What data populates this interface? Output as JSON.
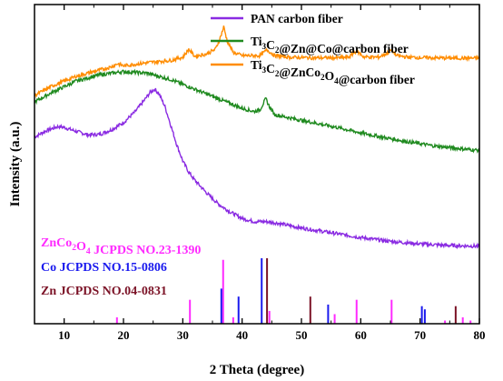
{
  "chart_data": {
    "type": "line",
    "title": "",
    "xlabel": "2 Theta (degree)",
    "ylabel": "Intensity (a.u.)",
    "xlim": [
      5,
      80
    ],
    "ylim": [
      0,
      100
    ],
    "y_ticks_shown": false,
    "x_ticks": [
      10,
      20,
      30,
      40,
      50,
      60,
      70,
      80
    ],
    "x_minor_step": 5,
    "grid": false,
    "legend_position": "top-right",
    "series": [
      {
        "name": "PAN carbon fiber",
        "color": "#8a2be2",
        "points": [
          [
            5,
            58.5
          ],
          [
            7,
            60.5
          ],
          [
            9,
            61.8
          ],
          [
            10,
            61.5
          ],
          [
            12,
            60.3
          ],
          [
            14,
            59.2
          ],
          [
            16,
            59.3
          ],
          [
            18,
            60.8
          ],
          [
            20,
            63
          ],
          [
            22,
            66.5
          ],
          [
            23.5,
            70
          ],
          [
            24.5,
            72.5
          ],
          [
            25.3,
            73.5
          ],
          [
            26,
            72
          ],
          [
            27,
            68
          ],
          [
            28,
            62
          ],
          [
            29,
            56
          ],
          [
            30,
            51
          ],
          [
            31,
            47.5
          ],
          [
            32,
            45
          ],
          [
            34,
            41
          ],
          [
            36,
            37.5
          ],
          [
            38,
            35
          ],
          [
            40,
            33
          ],
          [
            42,
            32
          ],
          [
            44,
            32
          ],
          [
            46,
            31.5
          ],
          [
            48,
            30.7
          ],
          [
            50,
            30
          ],
          [
            55,
            28.5
          ],
          [
            60,
            27
          ],
          [
            65,
            25.8
          ],
          [
            70,
            25
          ],
          [
            75,
            24.5
          ],
          [
            80,
            24.3
          ]
        ]
      },
      {
        "name": "Ti3C2@Zn@Co@carbon fiber",
        "color": "#1f8a1f",
        "points": [
          [
            5,
            69.5
          ],
          [
            8,
            72.5
          ],
          [
            12,
            76
          ],
          [
            16,
            78
          ],
          [
            20,
            79
          ],
          [
            24,
            78.5
          ],
          [
            28,
            76.5
          ],
          [
            32,
            73.5
          ],
          [
            36,
            70.5
          ],
          [
            40,
            67.5
          ],
          [
            42,
            66.5
          ],
          [
            43,
            67
          ],
          [
            44,
            70.5
          ],
          [
            44.6,
            68
          ],
          [
            45.5,
            65.5
          ],
          [
            48,
            64.5
          ],
          [
            52,
            63
          ],
          [
            56,
            61.5
          ],
          [
            60,
            59.8
          ],
          [
            64,
            58.3
          ],
          [
            68,
            57
          ],
          [
            72,
            55.8
          ],
          [
            76,
            55
          ],
          [
            80,
            54.3
          ]
        ]
      },
      {
        "name": "Ti3C2@ZnCo2O4@carbon fiber",
        "color": "#ff8c00",
        "points": [
          [
            5,
            71.5
          ],
          [
            8,
            74.5
          ],
          [
            12,
            77.5
          ],
          [
            16,
            79.5
          ],
          [
            18,
            80.5
          ],
          [
            19,
            81.5
          ],
          [
            20,
            80.8
          ],
          [
            24,
            81.8
          ],
          [
            28,
            82.5
          ],
          [
            30,
            83.5
          ],
          [
            31,
            86
          ],
          [
            32,
            83.8
          ],
          [
            34,
            84.5
          ],
          [
            35.5,
            86
          ],
          [
            36.2,
            89
          ],
          [
            36.9,
            93
          ],
          [
            37.5,
            88.5
          ],
          [
            38.5,
            85
          ],
          [
            40,
            84
          ],
          [
            43,
            84
          ],
          [
            44.2,
            85.8
          ],
          [
            45.5,
            84
          ],
          [
            48,
            83.5
          ],
          [
            52,
            83.3
          ],
          [
            56,
            83.3
          ],
          [
            58,
            83.5
          ],
          [
            59.3,
            85.5
          ],
          [
            60.5,
            83.6
          ],
          [
            63,
            83.5
          ],
          [
            64.5,
            84.8
          ],
          [
            65.2,
            85.8
          ],
          [
            66,
            84
          ],
          [
            68,
            83.5
          ],
          [
            72,
            83.3
          ],
          [
            76,
            83.2
          ],
          [
            80,
            83.2
          ]
        ]
      }
    ],
    "reference_patterns": [
      {
        "name": "ZnCo2O4 JCPDS NO.23-1390",
        "label_parts": [
          [
            "ZnCo",
            false
          ],
          [
            "2",
            true
          ],
          [
            "O",
            false
          ],
          [
            "4",
            true
          ],
          [
            " JCPDS NO.23-1390",
            false
          ]
        ],
        "color": "#ff2aff",
        "peaks": [
          [
            18.9,
            2
          ],
          [
            31.2,
            7.5
          ],
          [
            36.8,
            20
          ],
          [
            38.5,
            2
          ],
          [
            44.6,
            4
          ],
          [
            55.6,
            3
          ],
          [
            59.3,
            7.5
          ],
          [
            65.2,
            7.5
          ],
          [
            74.2,
            1
          ],
          [
            77.2,
            2
          ],
          [
            78.5,
            1
          ]
        ]
      },
      {
        "name": "Co JCPDS NO.15-0806",
        "label_parts": [
          [
            "Co JCPDS NO.15-0806",
            false
          ]
        ],
        "color": "#1a1aee",
        "peaks": [
          [
            36.5,
            11
          ],
          [
            39.4,
            8.5
          ],
          [
            43.3,
            20.5
          ],
          [
            54.5,
            6
          ],
          [
            70.3,
            5.5
          ],
          [
            70.8,
            4.5
          ]
        ]
      },
      {
        "name": "Zn JCPDS NO.04-0831",
        "label_parts": [
          [
            "Zn JCPDS NO.04-0831",
            false
          ]
        ],
        "color": "#7b1226",
        "peaks": [
          [
            44.2,
            20.5
          ],
          [
            51.5,
            8.5
          ],
          [
            76,
            5.5
          ]
        ]
      }
    ],
    "legend_entries": [
      {
        "color": "#8a2be2",
        "label_parts": [
          [
            "PAN carbon fiber",
            false
          ]
        ]
      },
      {
        "color": "#1f8a1f",
        "label_parts": [
          [
            "Ti",
            false
          ],
          [
            "3",
            true
          ],
          [
            "C",
            false
          ],
          [
            "2",
            true
          ],
          [
            "@Zn@Co@carbon fiber",
            false
          ]
        ]
      },
      {
        "color": "#ff8c00",
        "label_parts": [
          [
            "Ti",
            false
          ],
          [
            "3",
            true
          ],
          [
            "C",
            false
          ],
          [
            "2",
            true
          ],
          [
            "@ZnCo",
            false
          ],
          [
            "2",
            true
          ],
          [
            "O",
            false
          ],
          [
            "4",
            true
          ],
          [
            "@carbon fiber",
            false
          ]
        ]
      }
    ]
  }
}
